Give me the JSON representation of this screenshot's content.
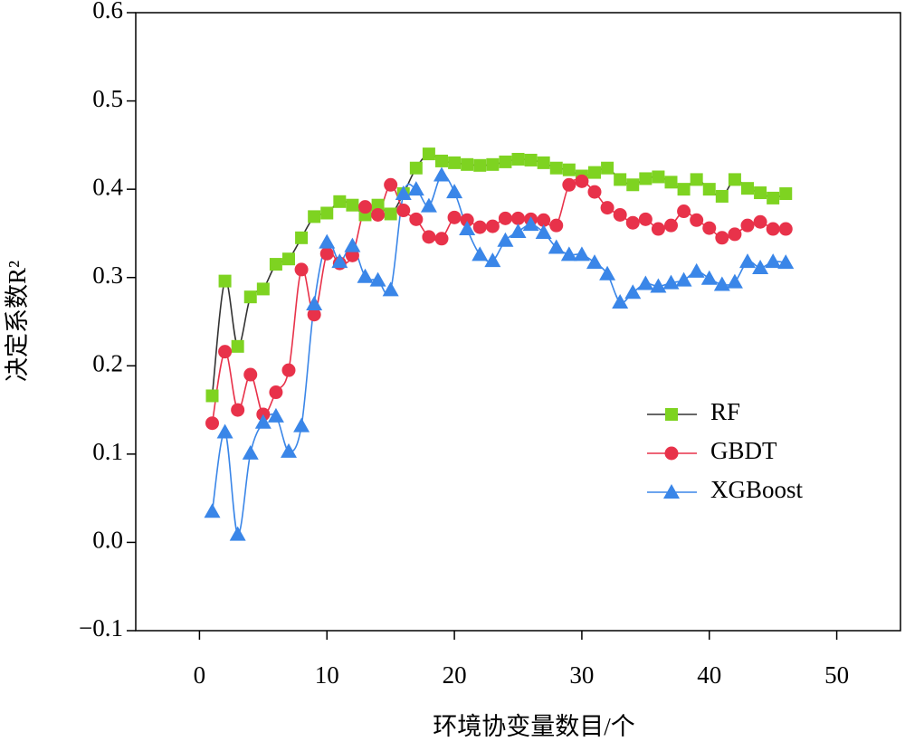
{
  "chart_data": {
    "type": "line",
    "xlabel": "环境协变量数目/个",
    "ylabel": "决定系数R²",
    "x": [
      1,
      2,
      3,
      4,
      5,
      6,
      7,
      8,
      9,
      10,
      11,
      12,
      13,
      14,
      15,
      16,
      17,
      18,
      19,
      20,
      21,
      22,
      23,
      24,
      25,
      26,
      27,
      28,
      29,
      30,
      31,
      32,
      33,
      34,
      35,
      36,
      37,
      38,
      39,
      40,
      41,
      42,
      43,
      44,
      45,
      46
    ],
    "series": [
      {
        "name": "RF",
        "color": "#7ed321",
        "line_color": "#333333",
        "marker": "square",
        "values": [
          0.166,
          0.296,
          0.222,
          0.278,
          0.287,
          0.315,
          0.321,
          0.345,
          0.369,
          0.373,
          0.386,
          0.382,
          0.371,
          0.382,
          0.372,
          0.395,
          0.424,
          0.44,
          0.432,
          0.43,
          0.428,
          0.427,
          0.428,
          0.431,
          0.434,
          0.433,
          0.43,
          0.424,
          0.422,
          0.415,
          0.419,
          0.424,
          0.411,
          0.405,
          0.412,
          0.414,
          0.408,
          0.4,
          0.411,
          0.4,
          0.392,
          0.411,
          0.401,
          0.396,
          0.39,
          0.395
        ]
      },
      {
        "name": "GBDT",
        "color": "#e8324a",
        "line_color": "#e8324a",
        "marker": "circle",
        "values": [
          0.135,
          0.216,
          0.15,
          0.19,
          0.145,
          0.17,
          0.195,
          0.309,
          0.258,
          0.327,
          0.316,
          0.325,
          0.38,
          0.371,
          0.405,
          0.376,
          0.366,
          0.346,
          0.344,
          0.368,
          0.365,
          0.357,
          0.358,
          0.367,
          0.367,
          0.366,
          0.365,
          0.359,
          0.405,
          0.409,
          0.397,
          0.379,
          0.371,
          0.362,
          0.366,
          0.355,
          0.359,
          0.375,
          0.365,
          0.356,
          0.345,
          0.349,
          0.359,
          0.363,
          0.355,
          0.355
        ]
      },
      {
        "name": "XGBoost",
        "color": "#3a86e8",
        "line_color": "#3a86e8",
        "marker": "triangle",
        "values": [
          0.035,
          0.125,
          0.009,
          0.101,
          0.136,
          0.143,
          0.103,
          0.132,
          0.27,
          0.34,
          0.318,
          0.336,
          0.301,
          0.297,
          0.286,
          0.395,
          0.4,
          0.381,
          0.416,
          0.397,
          0.355,
          0.326,
          0.319,
          0.342,
          0.352,
          0.36,
          0.351,
          0.334,
          0.326,
          0.326,
          0.317,
          0.304,
          0.272,
          0.283,
          0.293,
          0.29,
          0.294,
          0.297,
          0.307,
          0.299,
          0.292,
          0.295,
          0.318,
          0.311,
          0.318,
          0.317
        ]
      }
    ],
    "xlim": [
      -5,
      55
    ],
    "xticks": [
      0,
      10,
      20,
      30,
      40,
      50
    ],
    "ylim": [
      -0.1,
      0.6
    ],
    "yticks": [
      {
        "value": -0.1,
        "label": "−0.1"
      },
      {
        "value": 0,
        "label": "0.0"
      },
      0.1,
      0.2,
      0.3,
      0.4,
      0.5,
      0.6
    ],
    "smooth": true,
    "legend_loc": "center right"
  }
}
